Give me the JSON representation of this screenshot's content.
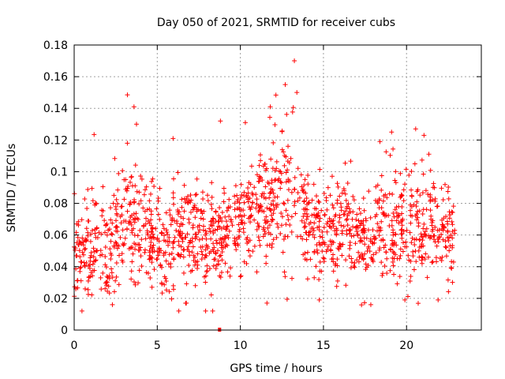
{
  "chart_data": {
    "type": "scatter",
    "title": "Day 050 of 2021, SRMTID for receiver cubs",
    "xlabel": "GPS time / hours",
    "ylabel": "SRMTID / TECUs",
    "xlim": [
      0,
      24.5
    ],
    "ylim": [
      0,
      0.18
    ],
    "x_ticks": [
      0,
      5,
      10,
      15,
      20
    ],
    "x_tick_labels": [
      "0",
      "5",
      "10",
      "15",
      "20"
    ],
    "y_ticks": [
      0,
      0.02,
      0.04,
      0.06,
      0.08,
      0.1,
      0.12,
      0.14,
      0.16,
      0.18
    ],
    "y_tick_labels": [
      "0",
      "0.02",
      "0.04",
      "0.06",
      "0.08",
      "0.1",
      "0.12",
      "0.14",
      "0.16",
      "0.18"
    ],
    "grid": true,
    "marker": "+",
    "marker_color": "#ff0000",
    "zero_marker": {
      "x": 8.75,
      "y": 0
    },
    "x_range": [
      0,
      22.9
    ],
    "envelope": [
      {
        "t": 0.0,
        "center": 0.048,
        "spread": 0.013
      },
      {
        "t": 1.0,
        "center": 0.054,
        "spread": 0.015
      },
      {
        "t": 2.0,
        "center": 0.05,
        "spread": 0.016
      },
      {
        "t": 3.0,
        "center": 0.063,
        "spread": 0.016
      },
      {
        "t": 3.7,
        "center": 0.072,
        "spread": 0.02
      },
      {
        "t": 4.5,
        "center": 0.06,
        "spread": 0.014
      },
      {
        "t": 5.5,
        "center": 0.049,
        "spread": 0.012
      },
      {
        "t": 6.2,
        "center": 0.068,
        "spread": 0.018
      },
      {
        "t": 7.5,
        "center": 0.058,
        "spread": 0.016
      },
      {
        "t": 8.5,
        "center": 0.058,
        "spread": 0.015
      },
      {
        "t": 9.5,
        "center": 0.066,
        "spread": 0.016
      },
      {
        "t": 10.5,
        "center": 0.072,
        "spread": 0.017
      },
      {
        "t": 11.5,
        "center": 0.075,
        "spread": 0.018
      },
      {
        "t": 12.5,
        "center": 0.085,
        "spread": 0.02
      },
      {
        "t": 13.2,
        "center": 0.09,
        "spread": 0.022
      },
      {
        "t": 14.0,
        "center": 0.068,
        "spread": 0.016
      },
      {
        "t": 15.0,
        "center": 0.06,
        "spread": 0.015
      },
      {
        "t": 16.0,
        "center": 0.065,
        "spread": 0.016
      },
      {
        "t": 17.0,
        "center": 0.062,
        "spread": 0.016
      },
      {
        "t": 18.0,
        "center": 0.06,
        "spread": 0.016
      },
      {
        "t": 19.0,
        "center": 0.066,
        "spread": 0.017
      },
      {
        "t": 20.0,
        "center": 0.062,
        "spread": 0.018
      },
      {
        "t": 21.0,
        "center": 0.066,
        "spread": 0.017
      },
      {
        "t": 22.0,
        "center": 0.06,
        "spread": 0.015
      },
      {
        "t": 22.9,
        "center": 0.058,
        "spread": 0.013
      }
    ],
    "n_points": 1500,
    "peaks": [
      {
        "x": 3.6,
        "y": 0.141
      },
      {
        "x": 3.75,
        "y": 0.13
      },
      {
        "x": 3.2,
        "y": 0.118
      },
      {
        "x": 5.95,
        "y": 0.121
      },
      {
        "x": 8.8,
        "y": 0.132
      },
      {
        "x": 10.3,
        "y": 0.131
      },
      {
        "x": 11.8,
        "y": 0.141
      },
      {
        "x": 12.7,
        "y": 0.155
      },
      {
        "x": 13.25,
        "y": 0.17
      },
      {
        "x": 13.4,
        "y": 0.15
      },
      {
        "x": 18.4,
        "y": 0.119
      },
      {
        "x": 19.1,
        "y": 0.125
      },
      {
        "x": 20.55,
        "y": 0.127
      },
      {
        "x": 21.05,
        "y": 0.123
      }
    ],
    "lows": [
      {
        "x": 0.1,
        "y": 0.026
      },
      {
        "x": 2.3,
        "y": 0.016
      },
      {
        "x": 6.75,
        "y": 0.017
      },
      {
        "x": 11.6,
        "y": 0.017
      },
      {
        "x": 14.75,
        "y": 0.019
      },
      {
        "x": 17.85,
        "y": 0.016
      },
      {
        "x": 19.9,
        "y": 0.019
      },
      {
        "x": 21.9,
        "y": 0.019
      }
    ]
  }
}
